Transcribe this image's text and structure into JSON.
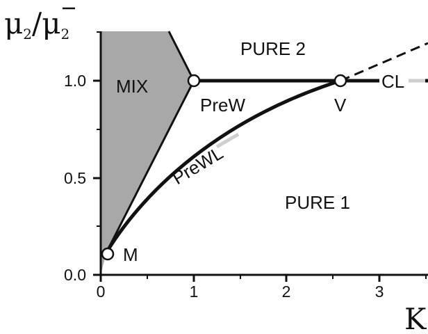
{
  "chart_data": {
    "type": "phase-diagram",
    "ylabel": {
      "mu": "μ",
      "sub": "2",
      "bar_sub": "2"
    },
    "xlabel": "K",
    "xlim": [
      0,
      3.5
    ],
    "ylim": [
      0,
      1.25
    ],
    "x_ticks": [
      "0",
      "1",
      "2",
      "3"
    ],
    "y_ticks": [
      "0.0",
      "0.5",
      "1.0"
    ],
    "regions": {
      "mix": "MIX",
      "pure2": "PURE 2",
      "pure1": "PURE 1"
    },
    "lines": {
      "prew": "PreW",
      "prewl": "PreWL",
      "cl": "CL"
    },
    "points": {
      "m": {
        "label": "M",
        "x": 0.07,
        "y": 0.1
      },
      "prew_start": {
        "label": "",
        "x": 1.0,
        "y": 1.0
      },
      "v": {
        "label": "V",
        "x": 2.6,
        "y": 1.0
      }
    },
    "colors": {
      "mix_fill": "#a8a8a8",
      "line": "#111111",
      "highlight": "#c8c8c8"
    }
  }
}
